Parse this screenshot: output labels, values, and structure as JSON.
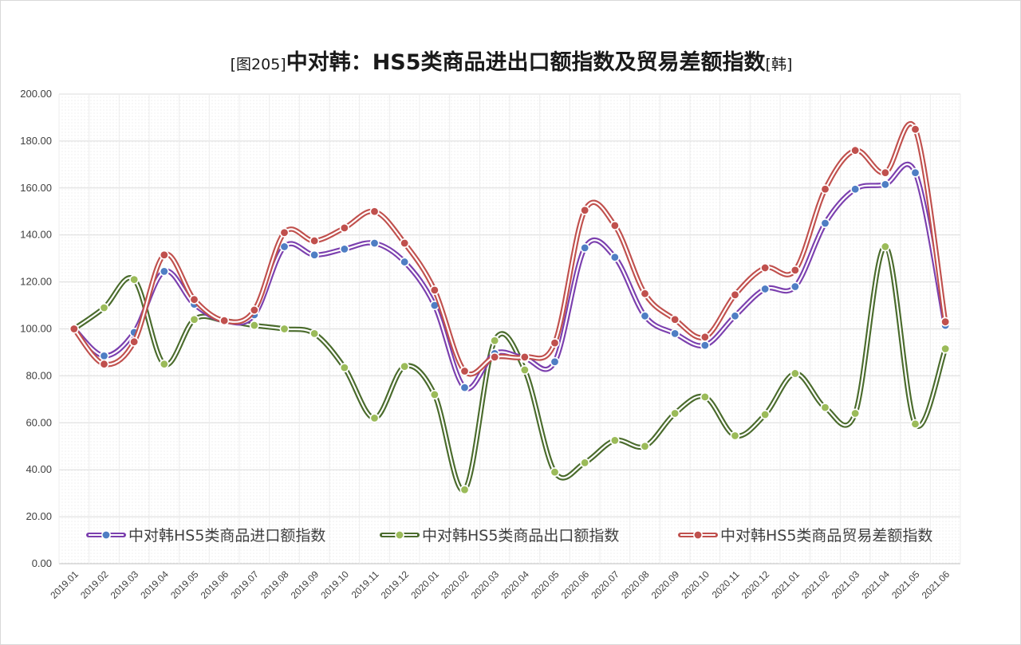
{
  "chart_data": {
    "type": "line",
    "title_prefix": "[图205]",
    "title_main": "中对韩：HS5类商品进出口额指数及贸易差额指数",
    "title_suffix": "[韩]",
    "ylim": [
      0,
      200
    ],
    "yticks": [
      "0.00",
      "20.00",
      "40.00",
      "60.00",
      "80.00",
      "100.00",
      "120.00",
      "140.00",
      "160.00",
      "180.00",
      "200.00"
    ],
    "grid": true,
    "legend_position": "bottom",
    "categories": [
      "2019.01",
      "2019.02",
      "2019.03",
      "2019.04",
      "2019.05",
      "2019.06",
      "2019.07",
      "2019.08",
      "2019.09",
      "2019.10",
      "2019.11",
      "2019.12",
      "2020.01",
      "2020.02",
      "2020.03",
      "2020.04",
      "2020.05",
      "2020.06",
      "2020.07",
      "2020.08",
      "2020.09",
      "2020.10",
      "2020.11",
      "2020.12",
      "2021.01",
      "2021.02",
      "2021.03",
      "2021.04",
      "2021.05",
      "2021.06"
    ],
    "series": [
      {
        "name": "中对韩HS5类商品进口额指数",
        "line_color": "#7b3fae",
        "marker_color": "#4f7ec4",
        "values": [
          100,
          88.5,
          98.5,
          124.5,
          110.5,
          103.5,
          106,
          135,
          131.5,
          134,
          136.5,
          128.5,
          110,
          75,
          89.5,
          87.5,
          86,
          134.5,
          130.5,
          105.5,
          98,
          93,
          105.5,
          117,
          118,
          145,
          159.5,
          161.5,
          166.5,
          101.5
        ]
      },
      {
        "name": "中对韩HS5类商品出口额指数",
        "line_color": "#4a6b2c",
        "marker_color": "#9bbb59",
        "values": [
          100,
          109,
          121,
          85,
          104,
          103.5,
          101.5,
          100,
          98,
          83.5,
          62,
          84,
          72,
          31.5,
          95,
          82.5,
          39,
          43,
          52.5,
          50,
          64,
          71,
          54.5,
          63.5,
          81,
          66.5,
          64,
          135,
          59.5,
          91.5
        ]
      },
      {
        "name": "中对韩HS5类商品贸易差额指数",
        "line_color": "#c0504d",
        "marker_color": "#c0504d",
        "values": [
          100,
          85,
          94.5,
          131.5,
          112.5,
          103.5,
          108,
          141,
          137.5,
          143,
          150,
          136.5,
          116.5,
          82,
          88,
          88,
          94,
          150.5,
          144,
          115,
          104,
          96.5,
          114.5,
          126,
          125,
          159.5,
          176,
          166.5,
          185,
          103
        ]
      }
    ]
  }
}
